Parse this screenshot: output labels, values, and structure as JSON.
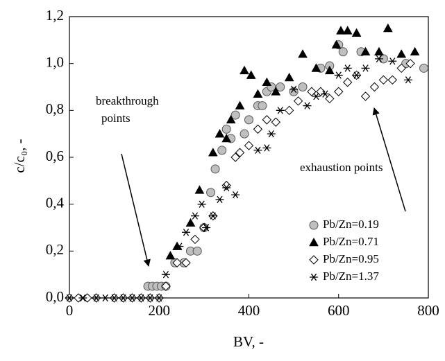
{
  "chart_data": {
    "type": "scatter",
    "x_label": "BV, -",
    "y_label": "c/c₀, -",
    "annotations": [
      [
        "breakthrough",
        "points"
      ],
      [
        "exhaustion points"
      ]
    ],
    "xlim": [
      0,
      800
    ],
    "xticks": [
      0,
      200,
      400,
      600,
      800
    ],
    "ylim": [
      0,
      1.2
    ],
    "yticks": [
      {
        "value": 0,
        "label": "0,0"
      },
      {
        "value": 0.2,
        "label": "0,2"
      },
      {
        "value": 0.4,
        "label": "0,4"
      },
      {
        "value": 0.6,
        "label": "0,6"
      },
      {
        "value": 0.8,
        "label": "0,8"
      },
      {
        "value": 1.0,
        "label": "1,0"
      },
      {
        "value": 1.2,
        "label": "1,2"
      }
    ],
    "legend": "lower right",
    "series": [
      {
        "name": "Pb/Zn=0.19",
        "marker": "circle",
        "color": "#bfbfbf",
        "x": [
          175,
          185,
          195,
          205,
          215,
          235,
          255,
          270,
          285,
          300,
          315,
          325,
          340,
          350,
          360,
          370,
          390,
          400,
          420,
          430,
          440,
          450,
          470,
          500,
          520,
          560,
          580,
          600,
          610,
          650,
          700,
          750,
          790
        ],
        "values": [
          0.05,
          0.05,
          0.05,
          0.05,
          0.05,
          0.15,
          0.15,
          0.2,
          0.2,
          0.3,
          0.45,
          0.55,
          0.63,
          0.72,
          0.68,
          0.78,
          0.7,
          0.76,
          0.82,
          0.82,
          0.88,
          0.9,
          0.9,
          0.88,
          0.9,
          0.98,
          0.99,
          1.08,
          1.05,
          1.05,
          1.02,
          1.0,
          0.98
        ]
      },
      {
        "name": "Pb/Zn=0.71",
        "marker": "triangle",
        "color": "#000000",
        "x": [
          225,
          240,
          270,
          290,
          320,
          335,
          350,
          360,
          380,
          390,
          405,
          420,
          440,
          460,
          490,
          520,
          550,
          580,
          595,
          605,
          620,
          640,
          660,
          690,
          710,
          740,
          770
        ],
        "values": [
          0.18,
          0.22,
          0.32,
          0.46,
          0.62,
          0.7,
          0.68,
          0.76,
          0.82,
          0.97,
          0.95,
          0.87,
          0.92,
          0.88,
          0.94,
          1.04,
          0.98,
          0.97,
          1.08,
          1.14,
          1.14,
          1.13,
          1.05,
          1.05,
          1.15,
          1.04,
          1.05
        ]
      },
      {
        "name": "Pb/Zn=0.95",
        "marker": "diamond",
        "color": "#ffffff",
        "x": [
          0,
          20,
          40,
          60,
          100,
          120,
          140,
          160,
          180,
          200,
          215,
          240,
          260,
          280,
          300,
          320,
          350,
          370,
          380,
          400,
          420,
          440,
          460,
          490,
          510,
          540,
          560,
          580,
          600,
          620,
          640,
          660,
          680,
          700,
          720,
          740,
          760
        ],
        "values": [
          0,
          0,
          0,
          0,
          0,
          0,
          0,
          0,
          0,
          0,
          0.05,
          0.15,
          0.15,
          0.25,
          0.3,
          0.35,
          0.48,
          0.6,
          0.62,
          0.65,
          0.72,
          0.76,
          0.75,
          0.8,
          0.84,
          0.88,
          0.88,
          0.85,
          0.88,
          0.92,
          0.95,
          0.86,
          0.9,
          0.93,
          0.93,
          0.98,
          1.0
        ]
      },
      {
        "name": "Pb/Zn=1.37",
        "marker": "star",
        "color": "#000000",
        "x": [
          0,
          30,
          60,
          80,
          100,
          120,
          140,
          160,
          180,
          200,
          215,
          245,
          260,
          280,
          295,
          305,
          320,
          335,
          350,
          370,
          420,
          440,
          450,
          470,
          500,
          530,
          550,
          570,
          600,
          620,
          640,
          660,
          690,
          720,
          755
        ],
        "values": [
          0,
          0,
          0,
          0,
          0,
          0,
          0,
          0,
          0,
          0,
          0.1,
          0.22,
          0.28,
          0.35,
          0.4,
          0.3,
          0.35,
          0.42,
          0.47,
          0.44,
          0.63,
          0.64,
          0.7,
          0.8,
          0.89,
          0.82,
          0.86,
          0.87,
          0.95,
          0.98,
          0.95,
          0.98,
          1.02,
          1.01,
          0.93
        ]
      }
    ]
  }
}
